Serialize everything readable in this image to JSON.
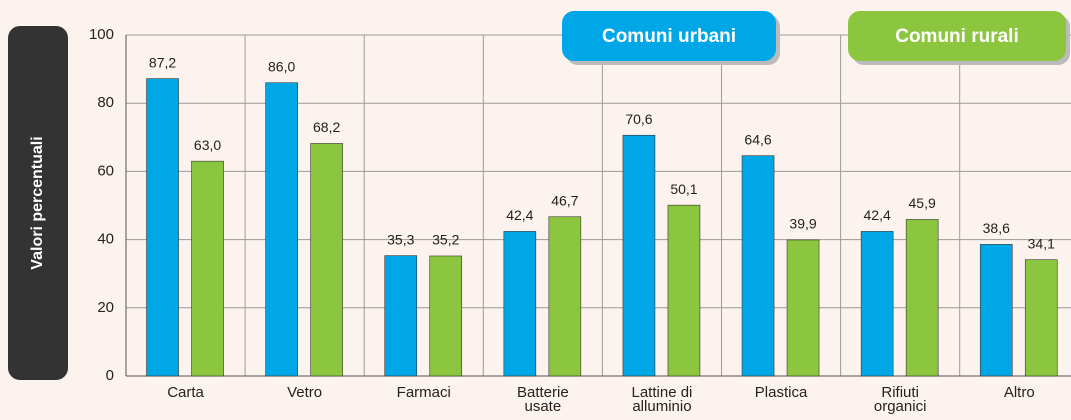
{
  "chart_data": {
    "type": "bar",
    "y_label": "Valori percentuali",
    "categories": [
      "Carta",
      "Vetro",
      "Farmaci",
      "Batterie\nusate",
      "Lattine di\nalluminio",
      "Plastica",
      "Rifiuti\norganici",
      "Altro"
    ],
    "series": [
      {
        "name": "Comuni urbani",
        "color": "#00a7e7",
        "values": [
          87.2,
          86.0,
          35.3,
          42.4,
          70.6,
          64.6,
          42.4,
          38.6
        ],
        "value_labels": [
          "87,2",
          "86,0",
          "35,3",
          "42,4",
          "70,6",
          "64,6",
          "42,4",
          "38,6"
        ]
      },
      {
        "name": "Comuni rurali",
        "color": "#8cc63f",
        "values": [
          63.0,
          68.2,
          35.2,
          46.7,
          50.1,
          39.9,
          45.9,
          34.1
        ],
        "value_labels": [
          "63,0",
          "68,2",
          "35,2",
          "46,7",
          "50,1",
          "39,9",
          "45,9",
          "34,1"
        ]
      }
    ],
    "ylim": [
      0,
      100
    ],
    "yticks": [
      0,
      20,
      40,
      60,
      80,
      100
    ],
    "grid": true
  }
}
